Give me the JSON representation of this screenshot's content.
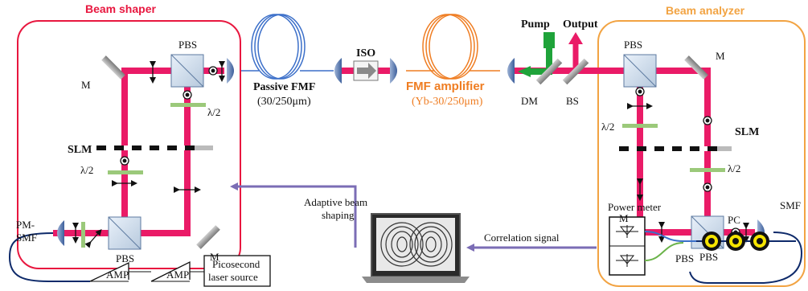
{
  "labels": {
    "beam_shaper": "Beam shaper",
    "beam_analyzer": "Beam analyzer",
    "m": "M",
    "pbs": "PBS",
    "slm": "SLM",
    "half_wave": "λ/2",
    "passive_fmf": "Passive FMF",
    "passive_fmf_spec": "(30/250μm)",
    "iso": "ISO",
    "fmf_amplifier": "FMF amplifier",
    "fmf_amplifier_spec": "(Yb-30/250μm)",
    "pump": "Pump",
    "output": "Output",
    "dm": "DM",
    "bs": "BS",
    "pm_smf_1": "PM-",
    "pm_smf_2": "SMF",
    "smf": "SMF",
    "amp": "AMP",
    "laser_1": "Picosecond",
    "laser_2": "laser source",
    "adaptive_1": "Adaptive beam",
    "adaptive_2": "shaping",
    "correlation": "Correlation signal",
    "power_meter": "Power meter",
    "pc": "PC"
  },
  "colors": {
    "beam": "#ea1b67",
    "shaper_box": "#e8173f",
    "analyzer_box": "#f2a342",
    "feedback_arrow": "#7b6db5",
    "fiber_blue": "#3b6fc9",
    "fiber_orange": "#ef7d22",
    "pump_green": "#1fa33a",
    "waveplate_green": "#9bc97a",
    "pc_yellow": "#f5e400"
  }
}
